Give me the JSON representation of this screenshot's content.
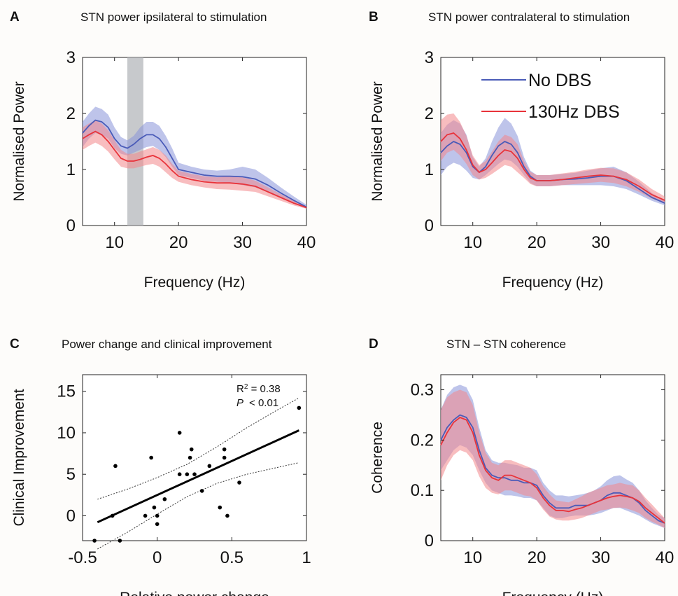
{
  "colors": {
    "no_dbs": "#4a5bb8",
    "no_dbs_band": "#8893d8",
    "dbs": "#e8333a",
    "dbs_band": "#f2878b",
    "shade": "#b9bcbf",
    "background": "#fdfcfa"
  },
  "chart_data": [
    {
      "panel": "A",
      "type": "line",
      "title": "STN power ipsilateral to stimulation",
      "xlabel": "Frequency (Hz)",
      "ylabel": "Normalised Power",
      "xlim": [
        5,
        40
      ],
      "ylim": [
        0,
        3
      ],
      "xticks": [
        "10",
        "20",
        "30",
        "40"
      ],
      "yticks": [
        "0",
        "1",
        "2",
        "3"
      ],
      "grid": false,
      "shaded_band": [
        12,
        14.5
      ],
      "series": [
        {
          "key": "no_dbs",
          "x": [
            5,
            6,
            7,
            8,
            9,
            10,
            11,
            12,
            13,
            14,
            15,
            16,
            17,
            18,
            19,
            20,
            22,
            24,
            26,
            28,
            30,
            32,
            34,
            36,
            38,
            40
          ],
          "values": [
            1.65,
            1.78,
            1.88,
            1.85,
            1.75,
            1.55,
            1.42,
            1.38,
            1.45,
            1.55,
            1.62,
            1.62,
            1.55,
            1.4,
            1.2,
            1.0,
            0.95,
            0.9,
            0.88,
            0.88,
            0.87,
            0.83,
            0.72,
            0.58,
            0.45,
            0.33
          ],
          "lower": [
            1.4,
            1.55,
            1.65,
            1.62,
            1.55,
            1.38,
            1.28,
            1.25,
            1.3,
            1.35,
            1.4,
            1.42,
            1.35,
            1.22,
            1.05,
            0.9,
            0.85,
            0.8,
            0.78,
            0.76,
            0.72,
            0.68,
            0.6,
            0.5,
            0.4,
            0.3
          ],
          "upper": [
            1.85,
            2.0,
            2.12,
            2.08,
            1.98,
            1.75,
            1.58,
            1.52,
            1.6,
            1.75,
            1.85,
            1.85,
            1.78,
            1.6,
            1.38,
            1.12,
            1.05,
            1.0,
            0.98,
            1.0,
            1.05,
            1.0,
            0.85,
            0.68,
            0.52,
            0.37
          ]
        },
        {
          "key": "dbs",
          "x": [
            5,
            6,
            7,
            8,
            9,
            10,
            11,
            12,
            13,
            14,
            15,
            16,
            17,
            18,
            19,
            20,
            22,
            24,
            26,
            28,
            30,
            32,
            34,
            36,
            38,
            40
          ],
          "values": [
            1.55,
            1.62,
            1.68,
            1.62,
            1.5,
            1.35,
            1.2,
            1.15,
            1.15,
            1.18,
            1.22,
            1.25,
            1.2,
            1.1,
            0.98,
            0.88,
            0.82,
            0.78,
            0.76,
            0.76,
            0.74,
            0.7,
            0.6,
            0.5,
            0.4,
            0.32
          ],
          "lower": [
            1.35,
            1.42,
            1.48,
            1.42,
            1.32,
            1.18,
            1.05,
            1.02,
            1.02,
            1.05,
            1.08,
            1.1,
            1.05,
            0.95,
            0.85,
            0.78,
            0.72,
            0.68,
            0.65,
            0.64,
            0.62,
            0.6,
            0.52,
            0.44,
            0.36,
            0.3
          ],
          "upper": [
            1.75,
            1.82,
            1.88,
            1.82,
            1.7,
            1.52,
            1.35,
            1.28,
            1.28,
            1.32,
            1.36,
            1.4,
            1.35,
            1.25,
            1.1,
            0.98,
            0.92,
            0.88,
            0.86,
            0.88,
            0.86,
            0.8,
            0.68,
            0.56,
            0.44,
            0.34
          ]
        }
      ]
    },
    {
      "panel": "B",
      "type": "line",
      "title": "STN power contralateral to stimulation",
      "xlabel": "Frequency (Hz)",
      "ylabel": "Normalised Power",
      "xlim": [
        5,
        40
      ],
      "ylim": [
        0,
        3
      ],
      "xticks": [
        "10",
        "20",
        "30",
        "40"
      ],
      "yticks": [
        "0",
        "1",
        "2",
        "3"
      ],
      "grid": false,
      "legend": {
        "placement": "top-right",
        "entries": [
          {
            "key": "no_dbs",
            "label": "No DBS"
          },
          {
            "key": "dbs",
            "label": "130Hz DBS"
          }
        ]
      },
      "series": [
        {
          "key": "no_dbs",
          "x": [
            5,
            6,
            7,
            8,
            9,
            10,
            11,
            12,
            13,
            14,
            15,
            16,
            17,
            18,
            19,
            20,
            22,
            24,
            26,
            28,
            30,
            32,
            34,
            36,
            38,
            40
          ],
          "values": [
            1.3,
            1.42,
            1.5,
            1.45,
            1.3,
            1.05,
            0.95,
            1.05,
            1.25,
            1.42,
            1.5,
            1.45,
            1.3,
            1.05,
            0.88,
            0.8,
            0.8,
            0.82,
            0.83,
            0.85,
            0.88,
            0.88,
            0.8,
            0.65,
            0.5,
            0.4
          ],
          "lower": [
            0.9,
            1.05,
            1.12,
            1.08,
            0.98,
            0.85,
            0.82,
            0.9,
            1.0,
            1.1,
            1.18,
            1.15,
            1.05,
            0.9,
            0.76,
            0.7,
            0.7,
            0.72,
            0.72,
            0.72,
            0.72,
            0.7,
            0.65,
            0.55,
            0.44,
            0.36
          ],
          "upper": [
            1.65,
            1.8,
            1.88,
            1.82,
            1.62,
            1.22,
            1.05,
            1.2,
            1.5,
            1.75,
            1.92,
            1.82,
            1.6,
            1.22,
            0.98,
            0.9,
            0.9,
            0.92,
            0.94,
            0.98,
            1.02,
            1.05,
            0.95,
            0.78,
            0.58,
            0.44
          ]
        },
        {
          "key": "dbs",
          "x": [
            5,
            6,
            7,
            8,
            9,
            10,
            11,
            12,
            13,
            14,
            15,
            16,
            17,
            18,
            19,
            20,
            22,
            24,
            26,
            28,
            30,
            32,
            34,
            36,
            38,
            40
          ],
          "values": [
            1.5,
            1.62,
            1.65,
            1.55,
            1.35,
            1.08,
            0.95,
            1.0,
            1.12,
            1.25,
            1.35,
            1.32,
            1.2,
            1.0,
            0.85,
            0.8,
            0.8,
            0.82,
            0.85,
            0.88,
            0.9,
            0.88,
            0.82,
            0.7,
            0.55,
            0.45
          ],
          "lower": [
            1.15,
            1.3,
            1.35,
            1.25,
            1.1,
            0.9,
            0.82,
            0.85,
            0.92,
            1.0,
            1.08,
            1.05,
            0.95,
            0.85,
            0.74,
            0.7,
            0.7,
            0.72,
            0.74,
            0.76,
            0.78,
            0.76,
            0.7,
            0.6,
            0.48,
            0.4
          ],
          "upper": [
            1.88,
            1.98,
            2.0,
            1.85,
            1.6,
            1.25,
            1.08,
            1.15,
            1.32,
            1.5,
            1.62,
            1.58,
            1.45,
            1.15,
            0.96,
            0.9,
            0.9,
            0.93,
            0.96,
            1.0,
            1.03,
            1.02,
            0.95,
            0.82,
            0.65,
            0.52
          ]
        }
      ]
    },
    {
      "panel": "C",
      "type": "scatter",
      "title": "Power change and clinical improvement",
      "xlabel": "Relative power change",
      "ylabel": "Clinical Improvement",
      "xlim": [
        -0.5,
        1
      ],
      "ylim": [
        -3,
        17
      ],
      "xticks": [
        "-0.5",
        "0",
        "0.5",
        "1"
      ],
      "yticks": [
        "0",
        "5",
        "10",
        "15"
      ],
      "grid": false,
      "annotations": {
        "r2_prefix": "R",
        "r2_sup": "2",
        "r2_value": " = 0.38",
        "p_symbol": "P",
        "p_value": "< 0.01"
      },
      "points": [
        {
          "x": -0.42,
          "y": -3
        },
        {
          "x": -0.28,
          "y": 6
        },
        {
          "x": -0.3,
          "y": 0
        },
        {
          "x": -0.25,
          "y": -3
        },
        {
          "x": -0.04,
          "y": 7
        },
        {
          "x": -0.02,
          "y": 1
        },
        {
          "x": 0.0,
          "y": -1
        },
        {
          "x": 0.0,
          "y": 0
        },
        {
          "x": 0.05,
          "y": 2
        },
        {
          "x": -0.08,
          "y": 0
        },
        {
          "x": 0.15,
          "y": 10
        },
        {
          "x": 0.15,
          "y": 5
        },
        {
          "x": 0.2,
          "y": 5
        },
        {
          "x": 0.22,
          "y": 7
        },
        {
          "x": 0.23,
          "y": 8
        },
        {
          "x": 0.25,
          "y": 5
        },
        {
          "x": 0.3,
          "y": 3
        },
        {
          "x": 0.35,
          "y": 6
        },
        {
          "x": 0.42,
          "y": 1
        },
        {
          "x": 0.45,
          "y": 8
        },
        {
          "x": 0.45,
          "y": 7
        },
        {
          "x": 0.47,
          "y": 0
        },
        {
          "x": 0.55,
          "y": 4
        },
        {
          "x": 0.95,
          "y": 13
        }
      ],
      "fit": {
        "slope": 8.2,
        "intercept": 2.5,
        "x_range": [
          -0.4,
          0.95
        ]
      },
      "ci_upper": {
        "x": [
          -0.4,
          -0.2,
          0.0,
          0.2,
          0.4,
          0.6,
          0.8,
          0.95
        ],
        "values": [
          2.0,
          3.2,
          4.6,
          6.2,
          8.3,
          10.6,
          12.7,
          14.2
        ]
      },
      "ci_lower": {
        "x": [
          -0.4,
          -0.2,
          0.0,
          0.2,
          0.4,
          0.6,
          0.8,
          0.95
        ],
        "values": [
          -4.0,
          -2.0,
          0.2,
          2.3,
          3.9,
          5.0,
          5.8,
          6.4
        ]
      }
    },
    {
      "panel": "D",
      "type": "line",
      "title": "STN – STN coherence",
      "xlabel": "Frequency (Hz)",
      "ylabel": "Coherence",
      "xlim": [
        5,
        40
      ],
      "ylim": [
        0,
        0.33
      ],
      "xticks": [
        "10",
        "20",
        "30",
        "40"
      ],
      "yticks": [
        "0",
        "0.1",
        "0.2",
        "0.3"
      ],
      "grid": false,
      "series": [
        {
          "key": "no_dbs",
          "x": [
            5,
            6,
            7,
            8,
            9,
            10,
            11,
            12,
            13,
            14,
            15,
            16,
            17,
            18,
            19,
            20,
            21,
            22,
            23,
            24,
            25,
            26,
            27,
            28,
            29,
            30,
            31,
            32,
            33,
            34,
            35,
            36,
            37,
            38,
            39,
            40
          ],
          "values": [
            0.2,
            0.225,
            0.24,
            0.25,
            0.245,
            0.225,
            0.18,
            0.145,
            0.13,
            0.125,
            0.125,
            0.12,
            0.12,
            0.115,
            0.115,
            0.11,
            0.09,
            0.075,
            0.065,
            0.065,
            0.065,
            0.07,
            0.07,
            0.07,
            0.075,
            0.08,
            0.09,
            0.095,
            0.095,
            0.09,
            0.085,
            0.075,
            0.06,
            0.05,
            0.04,
            0.035
          ],
          "lower": [
            0.14,
            0.16,
            0.18,
            0.19,
            0.185,
            0.17,
            0.14,
            0.115,
            0.1,
            0.095,
            0.09,
            0.09,
            0.088,
            0.085,
            0.085,
            0.08,
            0.065,
            0.05,
            0.045,
            0.045,
            0.048,
            0.05,
            0.05,
            0.05,
            0.052,
            0.055,
            0.06,
            0.065,
            0.065,
            0.06,
            0.055,
            0.05,
            0.042,
            0.035,
            0.03,
            0.025
          ],
          "upper": [
            0.26,
            0.29,
            0.305,
            0.31,
            0.305,
            0.28,
            0.225,
            0.18,
            0.16,
            0.155,
            0.155,
            0.152,
            0.15,
            0.145,
            0.145,
            0.14,
            0.115,
            0.1,
            0.09,
            0.09,
            0.088,
            0.09,
            0.092,
            0.095,
            0.1,
            0.108,
            0.12,
            0.128,
            0.13,
            0.122,
            0.115,
            0.1,
            0.08,
            0.065,
            0.052,
            0.045
          ]
        },
        {
          "key": "dbs",
          "x": [
            5,
            6,
            7,
            8,
            9,
            10,
            11,
            12,
            13,
            14,
            15,
            16,
            17,
            18,
            19,
            20,
            21,
            22,
            23,
            24,
            25,
            26,
            27,
            28,
            29,
            30,
            31,
            32,
            33,
            34,
            35,
            36,
            37,
            38,
            39,
            40
          ],
          "values": [
            0.19,
            0.215,
            0.235,
            0.245,
            0.24,
            0.215,
            0.17,
            0.14,
            0.125,
            0.12,
            0.13,
            0.13,
            0.125,
            0.12,
            0.115,
            0.105,
            0.085,
            0.07,
            0.06,
            0.06,
            0.058,
            0.062,
            0.065,
            0.07,
            0.075,
            0.08,
            0.085,
            0.088,
            0.09,
            0.088,
            0.085,
            0.078,
            0.065,
            0.055,
            0.045,
            0.035
          ],
          "lower": [
            0.12,
            0.15,
            0.17,
            0.18,
            0.175,
            0.16,
            0.128,
            0.105,
            0.095,
            0.092,
            0.1,
            0.1,
            0.095,
            0.09,
            0.088,
            0.08,
            0.062,
            0.048,
            0.042,
            0.04,
            0.04,
            0.042,
            0.045,
            0.05,
            0.055,
            0.06,
            0.062,
            0.065,
            0.066,
            0.064,
            0.06,
            0.055,
            0.045,
            0.038,
            0.032,
            0.025
          ],
          "upper": [
            0.26,
            0.285,
            0.295,
            0.3,
            0.295,
            0.27,
            0.215,
            0.175,
            0.155,
            0.15,
            0.16,
            0.16,
            0.155,
            0.15,
            0.145,
            0.132,
            0.108,
            0.092,
            0.08,
            0.078,
            0.076,
            0.082,
            0.088,
            0.095,
            0.1,
            0.105,
            0.11,
            0.112,
            0.115,
            0.112,
            0.11,
            0.1,
            0.085,
            0.072,
            0.058,
            0.045
          ]
        }
      ]
    }
  ]
}
